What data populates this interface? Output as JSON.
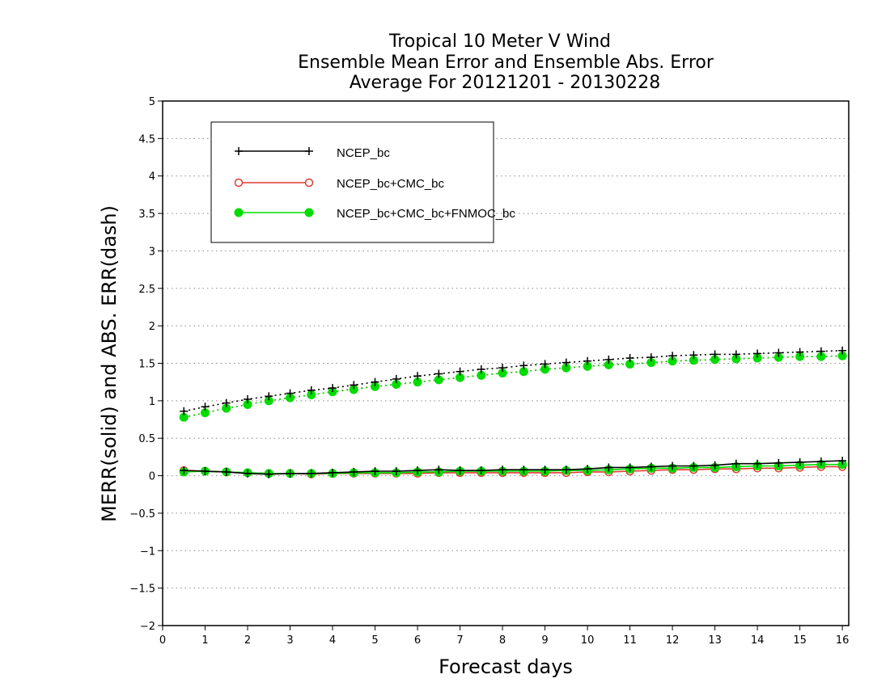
{
  "chart_data": {
    "type": "line",
    "title_lines": [
      "Tropical 10 Meter V Wind",
      "Ensemble Mean Error and Ensemble Abs. Error",
      "Average For 20121201 - 20130228"
    ],
    "xlabel": "Forecast days",
    "ylabel": "MERR(solid) and ABS. ERR(dash)",
    "xlim": [
      0,
      16.15
    ],
    "ylim": [
      -2,
      5
    ],
    "xticks": [
      0,
      1,
      2,
      3,
      4,
      5,
      6,
      7,
      8,
      9,
      10,
      11,
      12,
      13,
      14,
      15,
      16
    ],
    "yticks": [
      -2,
      -1.5,
      -1,
      -0.5,
      0,
      0.5,
      1,
      1.5,
      2,
      2.5,
      3,
      3.5,
      4,
      4.5,
      5
    ],
    "ytick_labels": [
      "−2",
      "−1.5",
      "−1",
      "−0.5",
      "0",
      "0.5",
      "1",
      "1.5",
      "2",
      "2.5",
      "3",
      "3.5",
      "4",
      "4.5",
      "5"
    ],
    "grid": "horizontal-dotted",
    "legend_position": "top-left",
    "x": [
      0.5,
      1,
      1.5,
      2,
      2.5,
      3,
      3.5,
      4,
      4.5,
      5,
      5.5,
      6,
      6.5,
      7,
      7.5,
      8,
      8.5,
      9,
      9.5,
      10,
      10.5,
      11,
      11.5,
      12,
      12.5,
      13,
      13.5,
      14,
      14.5,
      15,
      15.5,
      16
    ],
    "series": [
      {
        "name": "NCEP_bc",
        "color": "#000000",
        "marker": "plus",
        "merr": [
          0.07,
          0.06,
          0.05,
          0.03,
          0.02,
          0.03,
          0.03,
          0.04,
          0.05,
          0.06,
          0.06,
          0.07,
          0.08,
          0.07,
          0.07,
          0.08,
          0.08,
          0.08,
          0.08,
          0.09,
          0.11,
          0.11,
          0.12,
          0.13,
          0.13,
          0.14,
          0.16,
          0.16,
          0.17,
          0.18,
          0.19,
          0.2
        ],
        "abs_err": [
          0.86,
          0.92,
          0.97,
          1.02,
          1.06,
          1.1,
          1.14,
          1.17,
          1.21,
          1.25,
          1.29,
          1.33,
          1.36,
          1.39,
          1.42,
          1.44,
          1.47,
          1.49,
          1.51,
          1.53,
          1.55,
          1.57,
          1.58,
          1.6,
          1.61,
          1.62,
          1.62,
          1.63,
          1.64,
          1.65,
          1.66,
          1.67
        ]
      },
      {
        "name": "NCEP_bc+CMC_bc",
        "color": "#e03c32",
        "marker": "open-circle",
        "merr": [
          0.07,
          0.06,
          0.05,
          0.04,
          0.03,
          0.03,
          0.02,
          0.03,
          0.03,
          0.03,
          0.03,
          0.03,
          0.04,
          0.04,
          0.04,
          0.04,
          0.04,
          0.04,
          0.04,
          0.05,
          0.05,
          0.06,
          0.07,
          0.08,
          0.08,
          0.09,
          0.09,
          0.1,
          0.1,
          0.11,
          0.12,
          0.12
        ],
        "abs_err": [
          0.78,
          0.84,
          0.9,
          0.95,
          1.0,
          1.04,
          1.08,
          1.12,
          1.16,
          1.19,
          1.22,
          1.25,
          1.28,
          1.31,
          1.34,
          1.37,
          1.39,
          1.42,
          1.44,
          1.46,
          1.48,
          1.49,
          1.51,
          1.53,
          1.54,
          1.55,
          1.56,
          1.57,
          1.58,
          1.59,
          1.59,
          1.6
        ]
      },
      {
        "name": "NCEP_bc+CMC_bc+FNMOC_bc",
        "color": "#00dc00",
        "marker": "filled-circle",
        "merr": [
          0.05,
          0.06,
          0.05,
          0.04,
          0.03,
          0.03,
          0.03,
          0.03,
          0.04,
          0.04,
          0.04,
          0.05,
          0.05,
          0.06,
          0.06,
          0.06,
          0.06,
          0.06,
          0.07,
          0.07,
          0.08,
          0.09,
          0.1,
          0.1,
          0.11,
          0.11,
          0.12,
          0.13,
          0.13,
          0.14,
          0.15,
          0.15
        ],
        "abs_err": [
          0.78,
          0.84,
          0.9,
          0.95,
          1.0,
          1.04,
          1.08,
          1.12,
          1.15,
          1.19,
          1.22,
          1.25,
          1.28,
          1.31,
          1.34,
          1.37,
          1.39,
          1.42,
          1.44,
          1.46,
          1.48,
          1.49,
          1.51,
          1.53,
          1.54,
          1.55,
          1.56,
          1.57,
          1.58,
          1.59,
          1.59,
          1.6
        ]
      }
    ]
  }
}
